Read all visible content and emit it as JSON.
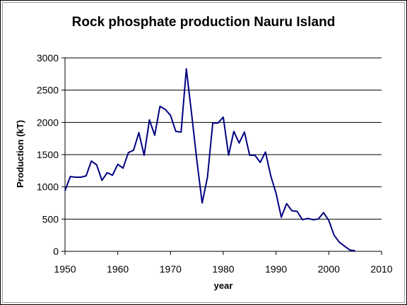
{
  "chart_data": {
    "type": "line",
    "title": "Rock phosphate production Nauru Island",
    "xlabel": "year",
    "ylabel": "Production (kT)",
    "xlim": [
      1950,
      2010
    ],
    "ylim": [
      0,
      3000
    ],
    "x_ticks": [
      "1950",
      "1960",
      "1970",
      "1980",
      "1990",
      "2000",
      "2010"
    ],
    "y_ticks": [
      "0",
      "500",
      "1000",
      "1500",
      "2000",
      "2500",
      "3000"
    ],
    "grid": "horizontal",
    "legend": "none",
    "series": [
      {
        "color": "#000080",
        "x": [
          1950,
          1951,
          1952,
          1953,
          1954,
          1955,
          1956,
          1957,
          1958,
          1959,
          1960,
          1961,
          1962,
          1963,
          1964,
          1965,
          1966,
          1967,
          1968,
          1969,
          1970,
          1971,
          1972,
          1973,
          1974,
          1975,
          1976,
          1977,
          1978,
          1979,
          1980,
          1981,
          1982,
          1983,
          1984,
          1985,
          1986,
          1987,
          1988,
          1989,
          1990,
          1991,
          1992,
          1993,
          1994,
          1995,
          1996,
          1997,
          1998,
          1999,
          2000,
          2001,
          2002,
          2003,
          2004,
          2005
        ],
        "y": [
          940,
          1160,
          1150,
          1150,
          1170,
          1400,
          1340,
          1100,
          1220,
          1180,
          1350,
          1290,
          1530,
          1570,
          1840,
          1490,
          2040,
          1800,
          2250,
          2200,
          2110,
          1860,
          1850,
          2830,
          2130,
          1400,
          750,
          1150,
          1990,
          1990,
          2080,
          1490,
          1860,
          1680,
          1850,
          1490,
          1490,
          1380,
          1540,
          1170,
          900,
          530,
          740,
          630,
          620,
          490,
          510,
          490,
          500,
          600,
          480,
          250,
          140,
          80,
          20,
          10
        ]
      }
    ]
  }
}
